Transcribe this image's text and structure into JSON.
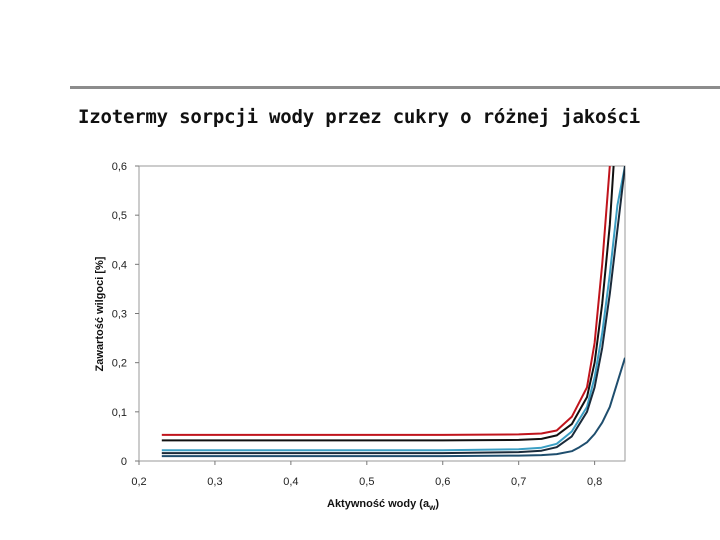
{
  "slide": {
    "title": "Izotermy sorpcji wody przez cukry o różnej jakości"
  },
  "chart_data": {
    "type": "line",
    "xlabel": "Aktywność wody (a",
    "xlabel_sub": "w",
    "xlabel_end": ")",
    "ylabel": "Zawartość wilgoci [%]",
    "xlim": [
      0.2,
      0.84
    ],
    "ylim": [
      0,
      0.6
    ],
    "x_ticks": [
      0.2,
      0.3,
      0.4,
      0.5,
      0.6,
      0.7,
      0.8
    ],
    "x_tick_labels": [
      "0,2",
      "0,3",
      "0,4",
      "0,5",
      "0,6",
      "0,7",
      "0,8"
    ],
    "y_ticks": [
      0,
      0.1,
      0.2,
      0.3,
      0.4,
      0.5,
      0.6
    ],
    "y_tick_labels": [
      "0",
      "0,1",
      "0,2",
      "0,3",
      "0,4",
      "0,5",
      "0,6"
    ],
    "grid": false,
    "legend": "none",
    "series": [
      {
        "color": "#c0141c",
        "x": [
          0.23,
          0.3,
          0.4,
          0.5,
          0.6,
          0.7,
          0.73,
          0.75,
          0.77,
          0.79,
          0.8,
          0.81,
          0.82
        ],
        "y": [
          0.053,
          0.053,
          0.053,
          0.053,
          0.053,
          0.054,
          0.056,
          0.062,
          0.09,
          0.15,
          0.24,
          0.4,
          0.6
        ]
      },
      {
        "color": "#111111",
        "x": [
          0.23,
          0.3,
          0.4,
          0.5,
          0.6,
          0.7,
          0.73,
          0.75,
          0.77,
          0.79,
          0.8,
          0.81,
          0.82,
          0.825
        ],
        "y": [
          0.042,
          0.042,
          0.042,
          0.042,
          0.042,
          0.043,
          0.045,
          0.052,
          0.075,
          0.13,
          0.2,
          0.32,
          0.48,
          0.6
        ]
      },
      {
        "color": "#3b9fc4",
        "x": [
          0.23,
          0.3,
          0.4,
          0.5,
          0.6,
          0.7,
          0.73,
          0.75,
          0.77,
          0.79,
          0.8,
          0.81,
          0.82,
          0.83,
          0.84
        ],
        "y": [
          0.022,
          0.022,
          0.022,
          0.022,
          0.022,
          0.024,
          0.027,
          0.035,
          0.06,
          0.11,
          0.17,
          0.26,
          0.38,
          0.52,
          0.6
        ]
      },
      {
        "color": "#1a2a3a",
        "x": [
          0.23,
          0.3,
          0.4,
          0.5,
          0.6,
          0.7,
          0.73,
          0.75,
          0.77,
          0.79,
          0.8,
          0.81,
          0.82,
          0.83,
          0.84
        ],
        "y": [
          0.016,
          0.016,
          0.016,
          0.016,
          0.016,
          0.018,
          0.021,
          0.028,
          0.05,
          0.1,
          0.15,
          0.23,
          0.34,
          0.47,
          0.6
        ]
      },
      {
        "color": "#1f4e6e",
        "x": [
          0.23,
          0.3,
          0.4,
          0.5,
          0.6,
          0.7,
          0.73,
          0.75,
          0.77,
          0.78,
          0.79,
          0.8,
          0.81,
          0.82,
          0.83,
          0.84
        ],
        "y": [
          0.01,
          0.01,
          0.01,
          0.01,
          0.01,
          0.011,
          0.012,
          0.014,
          0.02,
          0.028,
          0.038,
          0.055,
          0.078,
          0.11,
          0.16,
          0.21
        ]
      }
    ]
  }
}
